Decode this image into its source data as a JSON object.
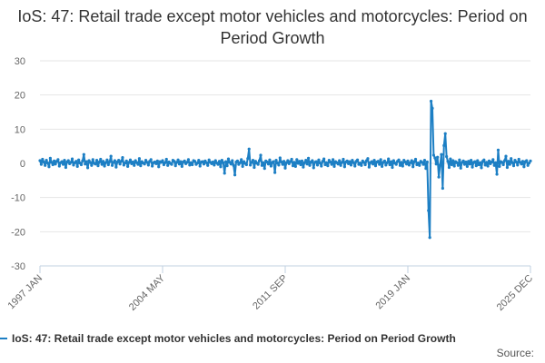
{
  "title": "IoS: 47: Retail trade except motor vehicles and motorcycles: Period on Period Growth",
  "source_label": "Source:",
  "colors": {
    "series": "#1d7fc4",
    "grid": "#e6e6e6",
    "axis": "#c0d0e0",
    "text": "#666666"
  },
  "chart_data": {
    "type": "line",
    "title": "IoS: 47: Retail trade except motor vehicles and motorcycles: Period on Period Growth",
    "xlabel": "",
    "ylabel": "",
    "ylim": [
      -30,
      30
    ],
    "yticks": [
      -30,
      -20,
      -10,
      0,
      10,
      20,
      30
    ],
    "xlim": [
      "1997 JAN",
      "2025 DEC"
    ],
    "xtick_labels": [
      "1997 JAN",
      "2004 MAY",
      "2011 SEP",
      "2019 JAN",
      "2025 DEC"
    ],
    "grid": true,
    "legend_position": "bottom",
    "series": [
      {
        "name": "IoS: 47: Retail trade except motor vehicles and motorcycles: Period on Period Growth",
        "x_start": "1997 JAN",
        "frequency": "monthly",
        "values": [
          0.8,
          -0.3,
          1.2,
          0.4,
          -0.6,
          0.9,
          0.1,
          -1.0,
          1.5,
          0.3,
          -0.4,
          0.7,
          -0.2,
          0.6,
          1.1,
          -0.8,
          0.2,
          0.5,
          -0.3,
          0.9,
          -1.2,
          0.4,
          0.8,
          -0.1,
          0.3,
          1.3,
          -0.5,
          0.2,
          0.6,
          -0.9,
          1.0,
          0.1,
          -0.4,
          0.7,
          2.6,
          -0.2,
          0.5,
          -1.3,
          0.8,
          0.3,
          -0.6,
          1.1,
          0.0,
          -0.2,
          0.9,
          -0.7,
          0.4,
          1.2,
          -0.3,
          0.6,
          -0.8,
          0.2,
          1.0,
          -0.4,
          0.5,
          2.1,
          -0.6,
          0.3,
          0.8,
          -1.1,
          0.4,
          0.9,
          -0.2,
          0.6,
          1.7,
          -0.5,
          0.1,
          0.7,
          -0.9,
          0.3,
          1.0,
          -0.1,
          0.4,
          -0.6,
          0.8,
          0.2,
          -0.3,
          1.4,
          -0.7,
          0.5,
          0.1,
          -0.2,
          0.9,
          0.3,
          -0.5,
          0.6,
          1.1,
          -0.8,
          0.2,
          0.4,
          -0.1,
          0.7,
          -1.0,
          0.5,
          0.3,
          0.8,
          -0.4,
          0.2,
          1.2,
          -0.6,
          0.4,
          0.0,
          -0.3,
          0.9,
          0.6,
          -0.7,
          0.3,
          1.0,
          -0.2,
          0.5,
          -0.9,
          0.4,
          0.7,
          -0.1,
          0.3,
          1.1,
          -0.5,
          0.2,
          -0.4,
          0.8,
          0.6,
          -0.3,
          0.1,
          0.9,
          -0.8,
          0.4,
          0.5,
          -0.2,
          0.7,
          0.2,
          -0.6,
          1.0,
          0.3,
          -0.1,
          0.4,
          -0.5,
          0.8,
          0.1,
          -0.3,
          0.6,
          -1.0,
          0.9,
          0.2,
          -2.9,
          0.5,
          -0.7,
          1.3,
          0.3,
          -0.2,
          0.8,
          -0.6,
          -3.4,
          0.4,
          0.7,
          -0.3,
          0.2,
          1.1,
          -0.9,
          0.5,
          0.0,
          -0.4,
          1.4,
          4.2,
          -0.5,
          0.3,
          0.9,
          -1.2,
          0.6,
          0.1,
          -0.3,
          0.8,
          2.4,
          -0.6,
          0.2,
          -1.5,
          0.7,
          0.4,
          -0.2,
          1.0,
          -0.8,
          0.3,
          0.5,
          -2.7,
          0.9,
          0.1,
          -0.5,
          1.6,
          0.4,
          -0.3,
          0.6,
          -1.4,
          0.2,
          0.8,
          -0.1,
          0.5,
          1.2,
          -0.7,
          0.3,
          -0.9,
          1.1,
          0.0,
          0.6,
          -0.4,
          0.7,
          -1.1,
          0.2,
          0.9,
          -0.2,
          1.5,
          -0.6,
          0.4,
          0.8,
          -1.3,
          0.3,
          0.5,
          -0.5,
          1.0,
          0.1,
          -0.8,
          0.6,
          1.3,
          -0.4,
          0.2,
          -0.7,
          0.9,
          0.4,
          -0.3,
          1.1,
          -0.9,
          0.5,
          0.2,
          -0.2,
          0.8,
          -0.6,
          0.3,
          1.2,
          -1.0,
          0.4,
          0.7,
          -0.1,
          0.5,
          -0.5,
          0.9,
          0.2,
          -0.8,
          0.6,
          1.0,
          -0.3,
          0.1,
          -0.6,
          0.7,
          0.3,
          -0.4,
          0.8,
          1.4,
          -1.1,
          0.2,
          0.5,
          -0.2,
          0.9,
          -0.7,
          0.4,
          0.6,
          -0.3,
          1.1,
          -0.9,
          0.3,
          0.7,
          -0.5,
          0.2,
          1.3,
          -0.4,
          0.5,
          -1.2,
          0.8,
          0.1,
          -0.3,
          0.6,
          1.0,
          -0.6,
          0.3,
          -0.8,
          0.9,
          0.4,
          -0.2,
          0.7,
          -0.5,
          0.2,
          0.8,
          -1.0,
          0.5,
          1.2,
          -0.4,
          0.1,
          -0.6,
          0.6,
          0.3,
          -0.3,
          0.9,
          -1.5,
          0.4,
          -13.8,
          -21.7,
          18.2,
          16.1,
          2.4,
          1.6,
          -0.2,
          1.8,
          -4.0,
          -0.5,
          2.6,
          -7.3,
          5.2,
          8.7,
          2.0,
          0.6,
          -1.2,
          1.3,
          -0.4,
          0.8,
          -0.8,
          0.5,
          0.2,
          -0.6,
          1.0,
          -1.4,
          0.3,
          0.7,
          -0.3,
          0.4,
          -0.9,
          0.6,
          -0.2,
          0.9,
          -1.1,
          0.3,
          0.5,
          -0.7,
          0.8,
          -0.4,
          0.2,
          -1.3,
          0.6,
          1.0,
          -0.5,
          0.3,
          -0.8,
          0.7,
          -0.1,
          0.4,
          1.1,
          -0.6,
          0.2,
          -3.2,
          3.9,
          -0.9,
          0.5,
          0.3,
          -0.4,
          0.8,
          2.1,
          -1.2,
          0.6,
          -0.3,
          1.4,
          0.2,
          -0.7,
          0.9,
          0.4,
          -0.5,
          1.2,
          0.3,
          -0.2,
          0.6,
          -1.0,
          0.5,
          0.8,
          -0.6,
          0.1,
          0.7
        ]
      }
    ]
  }
}
